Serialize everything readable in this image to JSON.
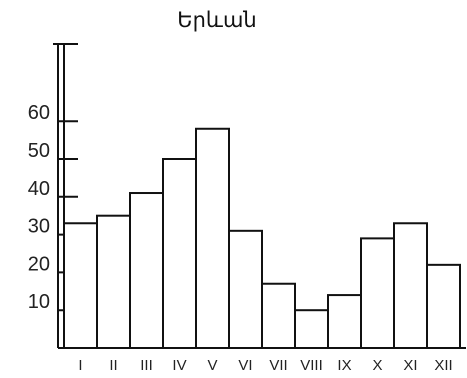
{
  "chart_data": {
    "type": "bar",
    "title": "Երևան",
    "xlabel": "",
    "ylabel": "",
    "categories": [
      "I",
      "II",
      "III",
      "IV",
      "V",
      "VI",
      "VII",
      "VIII",
      "IX",
      "X",
      "XI",
      "XII"
    ],
    "values": [
      33,
      35,
      41,
      50,
      58,
      31,
      17,
      10,
      14,
      29,
      33,
      22
    ],
    "ylim": [
      0,
      70
    ],
    "yticks": [
      10,
      20,
      30,
      40,
      50,
      60
    ],
    "grid": false,
    "legend": "none",
    "colors": {
      "bar_fill": "#ffffff",
      "bar_stroke": "#111111",
      "axis": "#111111"
    }
  }
}
